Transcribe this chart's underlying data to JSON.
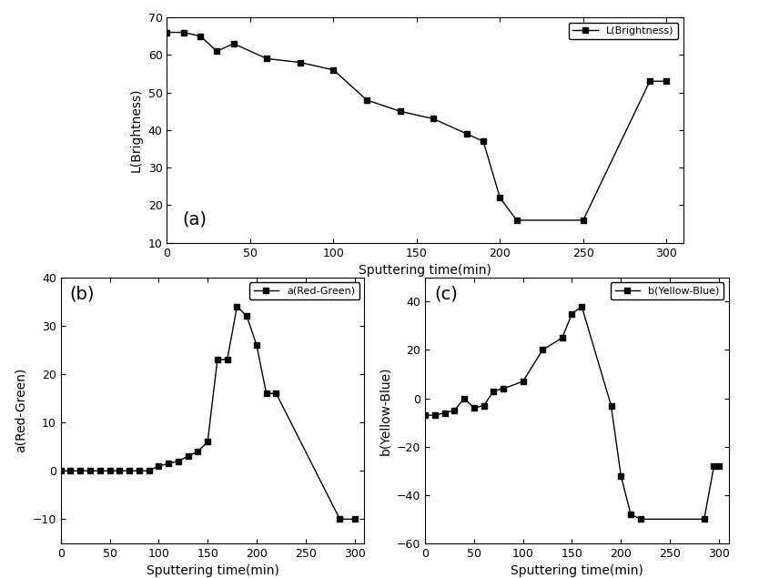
{
  "L_x": [
    0,
    10,
    20,
    30,
    40,
    60,
    80,
    100,
    120,
    140,
    160,
    180,
    190,
    200,
    210,
    250,
    290,
    300
  ],
  "L_y": [
    66,
    66,
    65,
    61,
    63,
    59,
    58,
    56,
    48,
    45,
    43,
    39,
    37,
    22,
    16,
    16,
    53,
    53
  ],
  "a_x": [
    0,
    10,
    20,
    30,
    40,
    50,
    60,
    70,
    80,
    90,
    100,
    110,
    120,
    130,
    140,
    150,
    160,
    170,
    180,
    190,
    200,
    210,
    220,
    285,
    300
  ],
  "a_y": [
    0,
    0,
    0,
    0,
    0,
    0,
    0,
    0,
    0,
    0,
    1,
    1.5,
    2,
    3,
    4,
    6,
    23,
    23,
    34,
    32,
    26,
    16,
    16,
    -10,
    -10
  ],
  "b_x": [
    0,
    10,
    20,
    30,
    40,
    50,
    60,
    70,
    80,
    100,
    120,
    140,
    150,
    160,
    190,
    200,
    210,
    220,
    285,
    295,
    300
  ],
  "b_y": [
    -7,
    -7,
    -6,
    -5,
    0,
    -4,
    -3,
    3,
    4,
    7,
    20,
    25,
    35,
    38,
    -3,
    -32,
    -48,
    -50,
    -50,
    -28,
    -28
  ],
  "L_ylim": [
    10,
    70
  ],
  "a_ylim": [
    -15,
    40
  ],
  "b_ylim": [
    -60,
    50
  ],
  "xlim": [
    0,
    310
  ],
  "xlabel": "Sputtering time(min)",
  "L_ylabel": "L(Brightness)",
  "a_ylabel": "a(Red-Green)",
  "b_ylabel": "b(Yellow-Blue)",
  "L_legend": "L(Brightness)",
  "a_legend": "a(Red-Green)",
  "b_legend": "b(Yellow-Blue)",
  "label_a": "(a)",
  "label_b": "(b)",
  "label_c": "(c)",
  "line_color": "#000000",
  "marker": "s",
  "markersize": 4,
  "linewidth": 1.0,
  "tick_fontsize": 9,
  "label_fontsize": 10
}
